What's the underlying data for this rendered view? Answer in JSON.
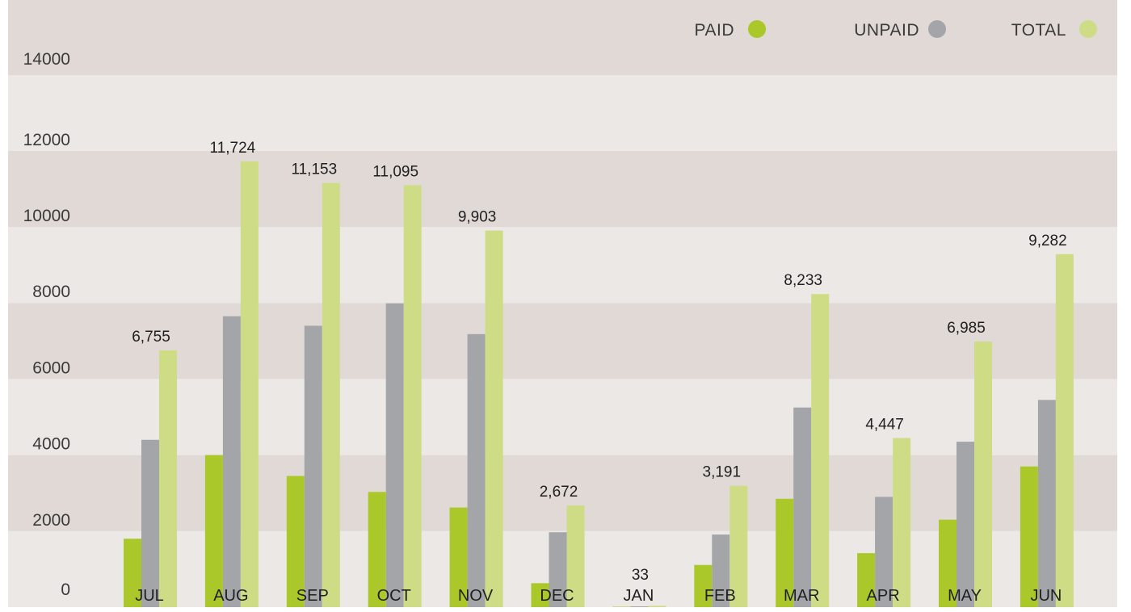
{
  "chart_data": {
    "type": "bar",
    "title": "",
    "xlabel": "",
    "ylabel": "",
    "ylim": [
      0,
      14000
    ],
    "yticks": [
      "0",
      "2000",
      "4000",
      "6000",
      "8000",
      "10000",
      "12000",
      "14000"
    ],
    "categories": [
      "JUL",
      "AUG",
      "SEP",
      "OCT",
      "NOV",
      "DEC",
      "JAN",
      "FEB",
      "MAR",
      "APR",
      "MAY",
      "JUN"
    ],
    "series": [
      {
        "name": "PAID",
        "color": "#aac82a",
        "values": [
          1800,
          4000,
          3450,
          3030,
          2620,
          630,
          10,
          1110,
          2850,
          1420,
          2300,
          3700
        ]
      },
      {
        "name": "UNPAID",
        "color": "#a4a5a9",
        "values": [
          4400,
          7650,
          7400,
          7990,
          7180,
          1970,
          20,
          1910,
          5250,
          2900,
          4350,
          5450
        ]
      },
      {
        "name": "TOTAL",
        "color": "#cedc86",
        "values": [
          6755,
          11724,
          11153,
          11095,
          9903,
          2672,
          33,
          3191,
          8233,
          4447,
          6985,
          9282
        ]
      }
    ],
    "data_labels": [
      "6,755",
      "11,724",
      "11,153",
      "11,095",
      "9,903",
      "2,672",
      "33",
      "3,191",
      "8,233",
      "4,447",
      "6,985",
      "9,282"
    ],
    "legend_position": "top-right",
    "grid": "alternating horizontal bands"
  }
}
